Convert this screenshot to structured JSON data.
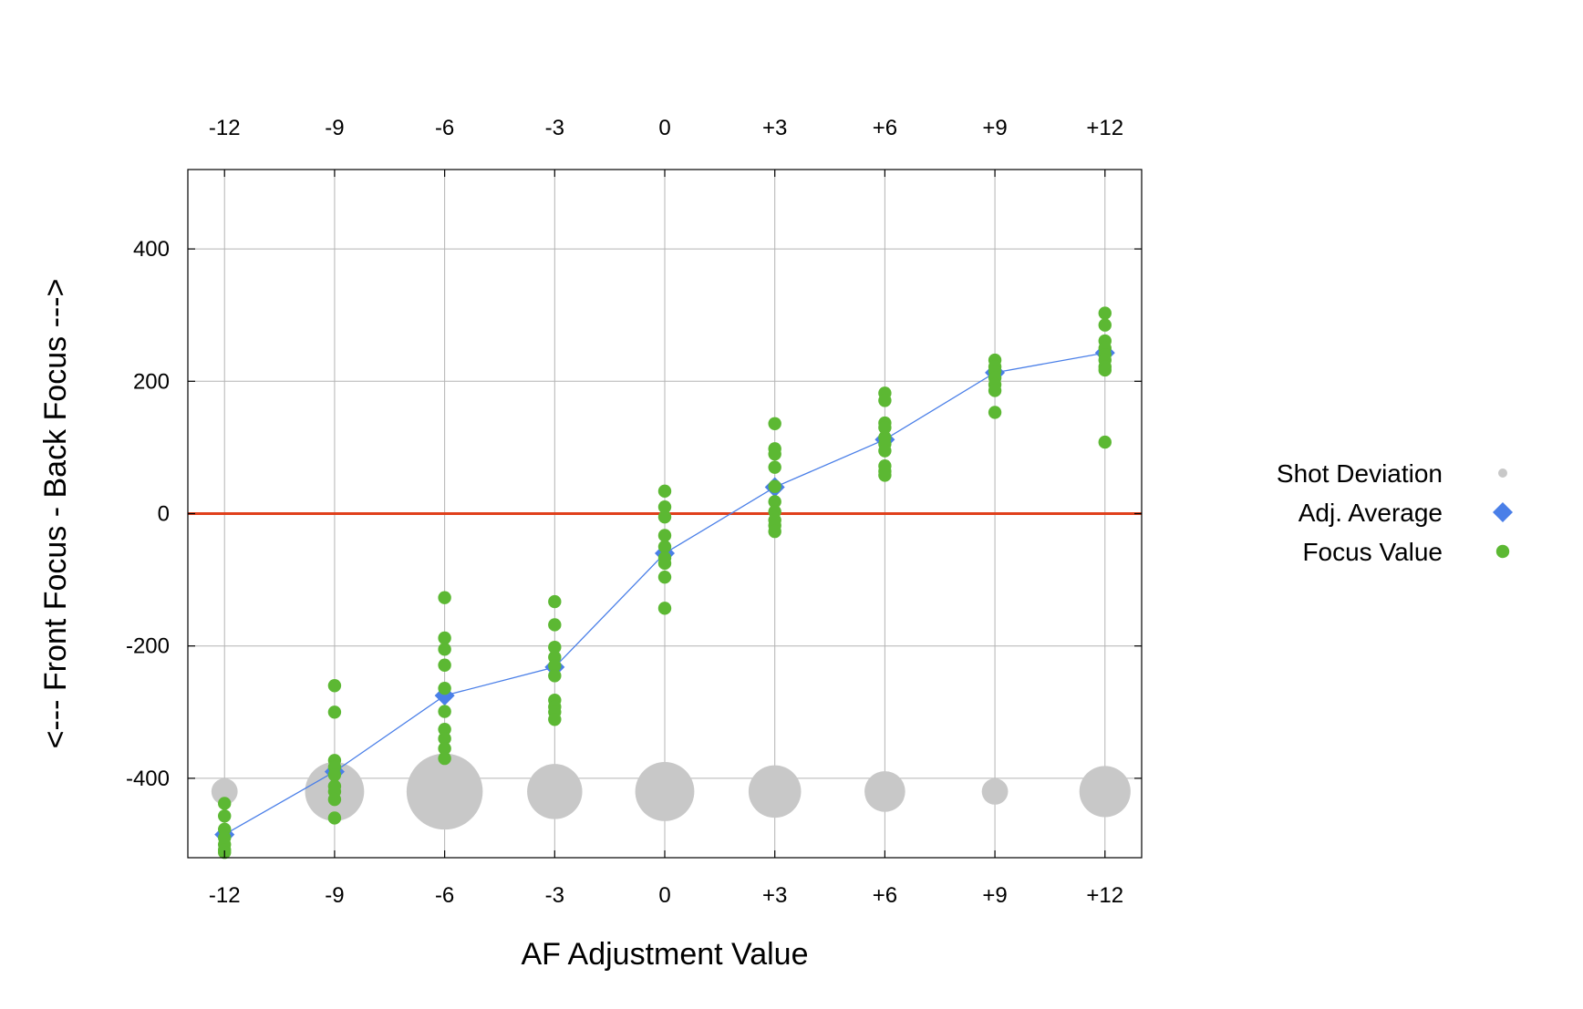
{
  "chart_data": {
    "type": "scatter",
    "xlabel": "AF Adjustment Value",
    "ylabel": "<--- Front Focus - Back Focus --->",
    "xlim": [
      -13,
      13
    ],
    "ylim": [
      -520,
      520
    ],
    "x_ticks": [
      -12,
      -9,
      -6,
      -3,
      0,
      3,
      6,
      9,
      12
    ],
    "x_tick_labels": [
      "-12",
      "-9",
      "-6",
      "-3",
      "0",
      "+3",
      "+6",
      "+9",
      "+12"
    ],
    "y_ticks": [
      -400,
      -200,
      0,
      200,
      400
    ],
    "y_tick_labels": [
      "-400",
      "-200",
      "0",
      "200",
      "400"
    ],
    "grid": true,
    "top_axis_ticks": true,
    "reference_line": {
      "y": 0,
      "color": "#e0401c"
    },
    "legend_position": "right",
    "series": [
      {
        "name": "Shot Deviation",
        "kind": "bubble",
        "color": "#c8c8c8",
        "y_level": -420,
        "points": [
          {
            "x": -12,
            "size": 20
          },
          {
            "x": -9,
            "size": 45
          },
          {
            "x": -6,
            "size": 58
          },
          {
            "x": -3,
            "size": 42
          },
          {
            "x": 0,
            "size": 45
          },
          {
            "x": 3,
            "size": 40
          },
          {
            "x": 6,
            "size": 31
          },
          {
            "x": 9,
            "size": 20
          },
          {
            "x": 12,
            "size": 39
          }
        ]
      },
      {
        "name": "Adj. Average",
        "kind": "line-diamond",
        "color": "#4a7fe8",
        "points": [
          {
            "x": -12,
            "y": -485
          },
          {
            "x": -9,
            "y": -390
          },
          {
            "x": -6,
            "y": -275
          },
          {
            "x": -3,
            "y": -232
          },
          {
            "x": 0,
            "y": -60
          },
          {
            "x": 3,
            "y": 40
          },
          {
            "x": 6,
            "y": 112
          },
          {
            "x": 9,
            "y": 213
          },
          {
            "x": 12,
            "y": 243
          }
        ]
      },
      {
        "name": "Focus Value",
        "kind": "dots",
        "color": "#5cb833",
        "groups": [
          {
            "x": -12,
            "y": [
              -438,
              -457,
              -477,
              -490,
              -500,
              -508,
              -512
            ]
          },
          {
            "x": -9,
            "y": [
              -260,
              -300,
              -373,
              -383,
              -395,
              -412,
              -420,
              -432,
              -460
            ]
          },
          {
            "x": -6,
            "y": [
              -127,
              -188,
              -205,
              -229,
              -264,
              -299,
              -326,
              -340,
              -355,
              -370
            ]
          },
          {
            "x": -3,
            "y": [
              -133,
              -168,
              -202,
              -217,
              -230,
              -245,
              -282,
              -292,
              -300,
              -311
            ]
          },
          {
            "x": 0,
            "y": [
              34,
              10,
              -5,
              -33,
              -50,
              -67,
              -75,
              -96,
              -143
            ]
          },
          {
            "x": 3,
            "y": [
              136,
              98,
              90,
              70,
              41,
              18,
              3,
              -10,
              -18,
              -27
            ]
          },
          {
            "x": 6,
            "y": [
              182,
              171,
              137,
              130,
              115,
              105,
              95,
              72,
              64,
              58
            ]
          },
          {
            "x": 9,
            "y": [
              232,
              222,
              215,
              205,
              195,
              186,
              153
            ]
          },
          {
            "x": 12,
            "y": [
              303,
              285,
              261,
              250,
              240,
              232,
              222,
              217,
              108
            ]
          }
        ]
      }
    ]
  }
}
